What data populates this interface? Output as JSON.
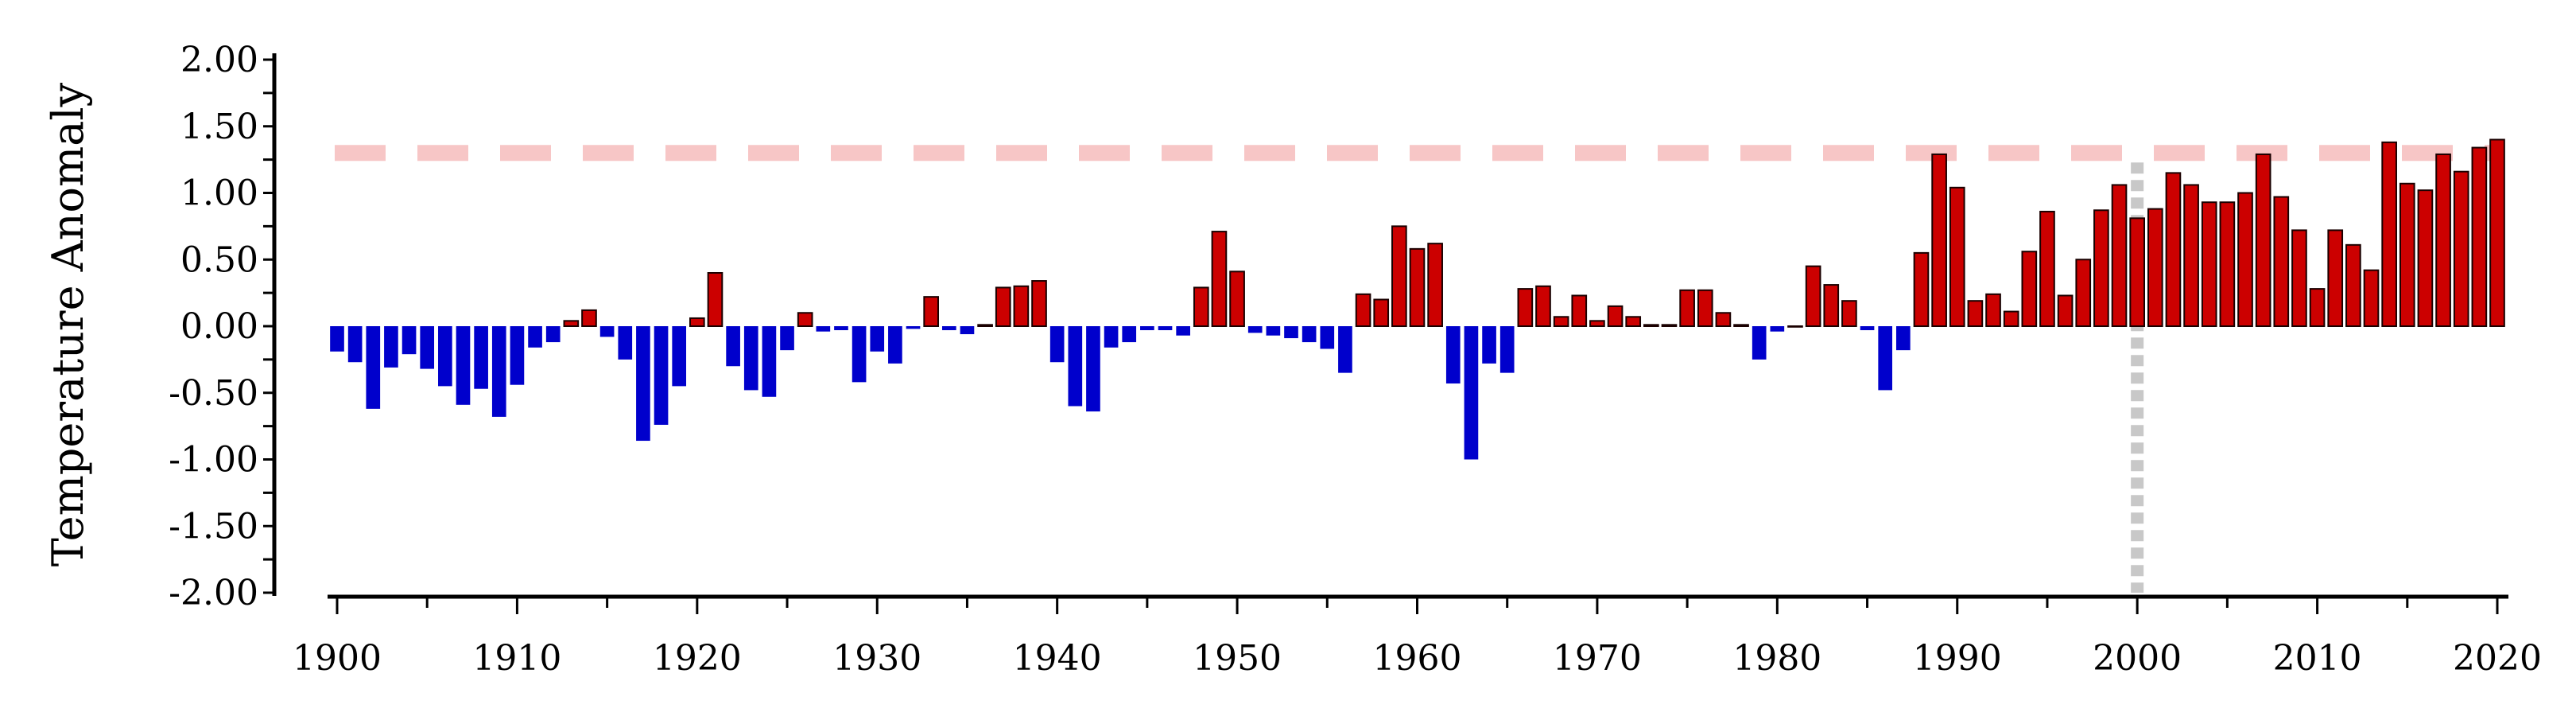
{
  "chart_data": {
    "type": "bar",
    "title": "",
    "xlabel": "",
    "ylabel": "Temperature Anomaly",
    "ylim": [
      -2.0,
      2.0
    ],
    "xlim": [
      1900,
      2020
    ],
    "grid": false,
    "y_ticks": [
      "2.00",
      "1.50",
      "1.00",
      "0.50",
      "0.00",
      "-0.50",
      "-1.00",
      "-1.50",
      "-2.00"
    ],
    "y_tick_values": [
      2.0,
      1.5,
      1.0,
      0.5,
      0.0,
      -0.5,
      -1.0,
      -1.5,
      -2.0
    ],
    "x_ticks": [
      "1900",
      "1910",
      "1920",
      "1930",
      "1940",
      "1950",
      "1960",
      "1970",
      "1980",
      "1990",
      "2000",
      "2010",
      "2020"
    ],
    "x_tick_values": [
      1900,
      1910,
      1920,
      1930,
      1940,
      1950,
      1960,
      1970,
      1980,
      1990,
      2000,
      2010,
      2020
    ],
    "colors": {
      "positive": "#cc0000",
      "negative": "#0000cc",
      "reference_line": "#f7c6c6",
      "vertical_marker": "#c8c8c8"
    },
    "reference_hline": {
      "y": 1.3,
      "style": "dashed"
    },
    "vertical_marker": {
      "x": 2000,
      "style": "dotted"
    },
    "x": [
      1900,
      1901,
      1902,
      1903,
      1904,
      1905,
      1906,
      1907,
      1908,
      1909,
      1910,
      1911,
      1912,
      1913,
      1914,
      1915,
      1916,
      1917,
      1918,
      1919,
      1920,
      1921,
      1922,
      1923,
      1924,
      1925,
      1926,
      1927,
      1928,
      1929,
      1930,
      1931,
      1932,
      1933,
      1934,
      1935,
      1936,
      1937,
      1938,
      1939,
      1940,
      1941,
      1942,
      1943,
      1944,
      1945,
      1946,
      1947,
      1948,
      1949,
      1950,
      1951,
      1952,
      1953,
      1954,
      1955,
      1956,
      1957,
      1958,
      1959,
      1960,
      1961,
      1962,
      1963,
      1964,
      1965,
      1966,
      1967,
      1968,
      1969,
      1970,
      1971,
      1972,
      1973,
      1974,
      1975,
      1976,
      1977,
      1978,
      1979,
      1980,
      1981,
      1982,
      1983,
      1984,
      1985,
      1986,
      1987,
      1988,
      1989,
      1990,
      1991,
      1992,
      1993,
      1994,
      1995,
      1996,
      1997,
      1998,
      1999,
      2000,
      2001,
      2002,
      2003,
      2004,
      2005,
      2006,
      2007,
      2008,
      2009,
      2010,
      2011,
      2012,
      2013,
      2014,
      2015,
      2016,
      2017,
      2018,
      2019,
      2020
    ],
    "values": [
      -0.19,
      -0.27,
      -0.62,
      -0.31,
      -0.21,
      -0.32,
      -0.45,
      -0.59,
      -0.47,
      -0.68,
      -0.44,
      -0.16,
      -0.12,
      0.04,
      0.12,
      -0.08,
      -0.25,
      -0.86,
      -0.74,
      -0.45,
      0.06,
      0.4,
      -0.3,
      -0.48,
      -0.53,
      -0.18,
      0.1,
      -0.04,
      -0.03,
      -0.42,
      -0.19,
      -0.28,
      -0.02,
      0.22,
      -0.03,
      -0.06,
      0.01,
      0.29,
      0.3,
      0.34,
      -0.27,
      -0.6,
      -0.64,
      -0.16,
      -0.12,
      -0.03,
      -0.03,
      -0.07,
      0.29,
      0.71,
      0.41,
      -0.05,
      -0.07,
      -0.09,
      -0.12,
      -0.17,
      -0.35,
      0.24,
      0.2,
      0.75,
      0.58,
      0.62,
      -0.43,
      -1.0,
      -0.28,
      -0.35,
      0.28,
      0.3,
      0.07,
      0.23,
      0.04,
      0.15,
      0.07,
      0.01,
      0.01,
      0.27,
      0.27,
      0.1,
      0.01,
      -0.25,
      -0.04,
      0.0,
      0.45,
      0.31,
      0.19,
      -0.03,
      -0.48,
      -0.18,
      0.55,
      1.29,
      1.04,
      0.19,
      0.24,
      0.11,
      0.56,
      0.86,
      0.23,
      0.5,
      0.87,
      1.06,
      0.81,
      0.88,
      1.15,
      1.06,
      0.93,
      0.93,
      1.0,
      1.29,
      0.97,
      0.72,
      0.28,
      0.72,
      0.61,
      0.42,
      1.38,
      1.07,
      1.02,
      1.29,
      1.16,
      1.34,
      1.4
    ]
  }
}
